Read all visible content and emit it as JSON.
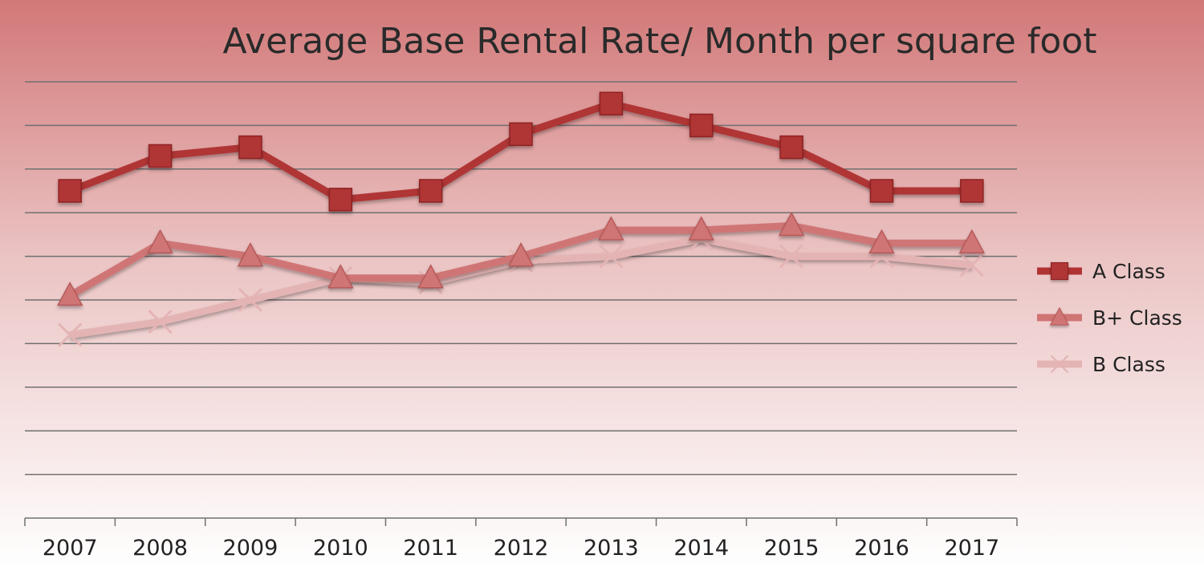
{
  "chart_data": {
    "type": "line",
    "title": "Average Base Rental Rate/ Month per square foot",
    "xlabel": "",
    "ylabel": "",
    "categories": [
      "2007",
      "2008",
      "2009",
      "2010",
      "2011",
      "2012",
      "2013",
      "2014",
      "2015",
      "2016",
      "2017"
    ],
    "ylim": [
      0,
      10
    ],
    "y_tick_labels_shown": false,
    "grid": true,
    "legend_position": "right",
    "series": [
      {
        "name": "A Class",
        "marker": "square",
        "color": "#b03434",
        "values": [
          7.5,
          8.3,
          8.5,
          7.3,
          7.5,
          8.8,
          9.5,
          9.0,
          8.5,
          7.5,
          7.5
        ]
      },
      {
        "name": "B+ Class",
        "marker": "triangle",
        "color": "#d07474",
        "values": [
          5.1,
          6.3,
          6.0,
          5.5,
          5.5,
          6.0,
          6.6,
          6.6,
          6.7,
          6.3,
          6.3
        ]
      },
      {
        "name": "B Class",
        "marker": "x",
        "color": "#e4b4b4",
        "values": [
          4.2,
          4.5,
          5.0,
          5.5,
          5.4,
          5.9,
          6.0,
          6.4,
          6.0,
          6.0,
          5.8
        ]
      }
    ]
  }
}
